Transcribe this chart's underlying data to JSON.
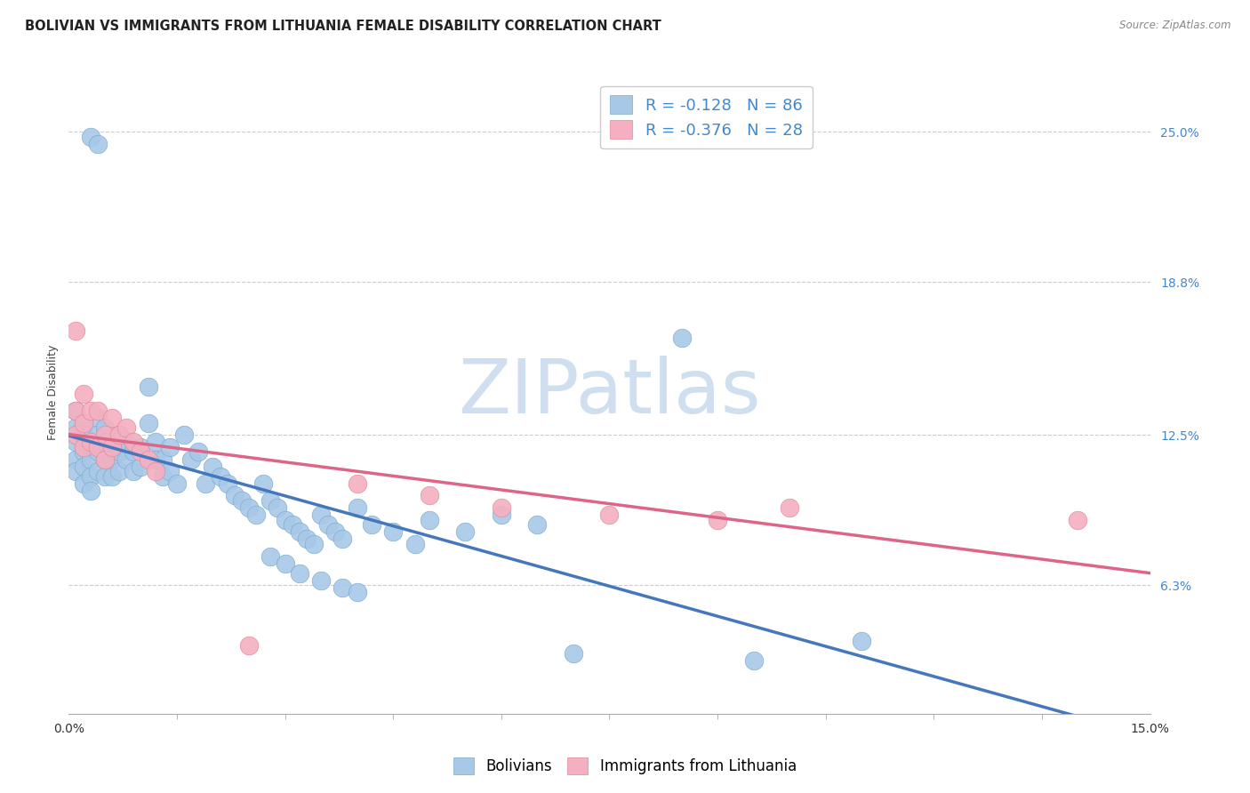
{
  "title": "BOLIVIAN VS IMMIGRANTS FROM LITHUANIA FEMALE DISABILITY CORRELATION CHART",
  "source": "Source: ZipAtlas.com",
  "ylabel": "Female Disability",
  "ytick_vals": [
    6.3,
    12.5,
    18.8,
    25.0
  ],
  "xmin": 0.0,
  "xmax": 0.15,
  "ymin": 1.0,
  "ymax": 27.5,
  "bolivians_x": [
    0.001,
    0.001,
    0.001,
    0.001,
    0.001,
    0.002,
    0.002,
    0.002,
    0.002,
    0.002,
    0.003,
    0.003,
    0.003,
    0.003,
    0.004,
    0.004,
    0.004,
    0.004,
    0.005,
    0.005,
    0.005,
    0.005,
    0.006,
    0.006,
    0.006,
    0.007,
    0.007,
    0.007,
    0.008,
    0.008,
    0.009,
    0.009,
    0.01,
    0.01,
    0.011,
    0.011,
    0.012,
    0.012,
    0.013,
    0.013,
    0.014,
    0.014,
    0.015,
    0.016,
    0.017,
    0.018,
    0.019,
    0.02,
    0.021,
    0.022,
    0.023,
    0.024,
    0.025,
    0.026,
    0.027,
    0.028,
    0.029,
    0.03,
    0.031,
    0.032,
    0.033,
    0.034,
    0.035,
    0.036,
    0.037,
    0.038,
    0.04,
    0.042,
    0.045,
    0.048,
    0.05,
    0.055,
    0.06,
    0.065,
    0.028,
    0.03,
    0.032,
    0.035,
    0.038,
    0.04,
    0.003,
    0.004,
    0.085,
    0.11,
    0.07,
    0.095
  ],
  "bolivians_y": [
    13.5,
    12.8,
    12.2,
    11.5,
    11.0,
    13.0,
    12.5,
    11.8,
    11.2,
    10.5,
    12.0,
    11.5,
    10.8,
    10.2,
    13.2,
    12.5,
    11.8,
    11.0,
    12.8,
    12.2,
    11.5,
    10.8,
    12.0,
    11.5,
    10.8,
    12.5,
    11.8,
    11.0,
    12.2,
    11.5,
    11.8,
    11.0,
    12.0,
    11.2,
    14.5,
    13.0,
    12.2,
    11.5,
    11.5,
    10.8,
    12.0,
    11.0,
    10.5,
    12.5,
    11.5,
    11.8,
    10.5,
    11.2,
    10.8,
    10.5,
    10.0,
    9.8,
    9.5,
    9.2,
    10.5,
    9.8,
    9.5,
    9.0,
    8.8,
    8.5,
    8.2,
    8.0,
    9.2,
    8.8,
    8.5,
    8.2,
    9.5,
    8.8,
    8.5,
    8.0,
    9.0,
    8.5,
    9.2,
    8.8,
    7.5,
    7.2,
    6.8,
    6.5,
    6.2,
    6.0,
    24.8,
    24.5,
    16.5,
    4.0,
    3.5,
    3.2
  ],
  "lithuania_x": [
    0.001,
    0.001,
    0.001,
    0.002,
    0.002,
    0.002,
    0.003,
    0.003,
    0.004,
    0.004,
    0.005,
    0.005,
    0.006,
    0.006,
    0.007,
    0.008,
    0.009,
    0.01,
    0.011,
    0.012,
    0.04,
    0.05,
    0.06,
    0.075,
    0.09,
    0.1,
    0.14,
    0.025
  ],
  "lithuania_y": [
    16.8,
    13.5,
    12.5,
    14.2,
    13.0,
    12.0,
    13.5,
    12.2,
    13.5,
    12.0,
    12.5,
    11.5,
    13.2,
    12.0,
    12.5,
    12.8,
    12.2,
    11.8,
    11.5,
    11.0,
    10.5,
    10.0,
    9.5,
    9.2,
    9.0,
    9.5,
    9.0,
    3.8
  ],
  "bolivians_color": "#a8c8e8",
  "bolivia_edge_color": "#7aaacc",
  "lithuania_color": "#f4b0c0",
  "lithuania_edge_color": "#e08898",
  "bolivians_line_color": "#4477bb",
  "lithuania_line_color": "#dd6688",
  "watermark_color": "#d0dff0",
  "legend_text_color": "#4488cc",
  "ytick_color": "#4488cc",
  "xtick_color": "#333333",
  "watermark": "ZIPatlas",
  "legend_R_bolivia": "-0.128",
  "legend_N_bolivia": "86",
  "legend_R_lithuania": "-0.376",
  "legend_N_lithuania": "28",
  "legend_label_bolivia": "Bolivians",
  "legend_label_lithuania": "Immigrants from Lithuania",
  "title_fontsize": 10.5,
  "axis_label_fontsize": 9,
  "tick_fontsize": 10,
  "legend_fontsize": 13
}
